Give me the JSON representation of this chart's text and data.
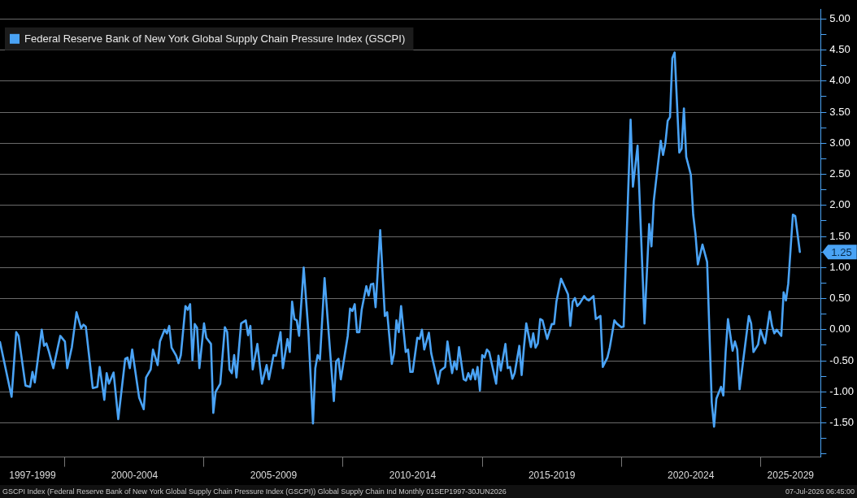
{
  "chart_data": {
    "type": "line",
    "x": [
      "1997-09",
      "1998-02",
      "1998-04",
      "1998-05",
      "1998-08",
      "1998-10",
      "1998-11",
      "1998-12",
      "1999-03",
      "1999-04",
      "1999-05",
      "1999-06",
      "1999-08",
      "1999-11",
      "2000-01",
      "2000-02",
      "2000-04",
      "2000-06",
      "2000-08",
      "2000-09",
      "2000-10",
      "2001-01",
      "2001-03",
      "2001-04",
      "2001-06",
      "2001-07",
      "2001-08",
      "2001-10",
      "2001-12",
      "2002-03",
      "2002-04",
      "2002-05",
      "2002-06",
      "2002-09",
      "2002-11",
      "2002-12",
      "2003-02",
      "2003-03",
      "2003-05",
      "2003-06",
      "2003-08",
      "2003-09",
      "2003-10",
      "2003-11",
      "2004-01",
      "2004-02",
      "2004-03",
      "2004-05",
      "2004-06",
      "2004-07",
      "2004-08",
      "2004-09",
      "2004-10",
      "2004-11",
      "2005-01",
      "2005-02",
      "2005-04",
      "2005-05",
      "2005-06",
      "2005-08",
      "2005-10",
      "2005-11",
      "2005-12",
      "2006-01",
      "2006-02",
      "2006-03",
      "2006-05",
      "2006-07",
      "2006-08",
      "2006-09",
      "2006-10",
      "2006-12",
      "2007-02",
      "2007-04",
      "2007-05",
      "2007-07",
      "2007-08",
      "2007-10",
      "2007-11",
      "2008-01",
      "2008-02",
      "2008-03",
      "2008-04",
      "2008-05",
      "2008-06",
      "2008-08",
      "2008-10",
      "2008-12",
      "2009-01",
      "2009-02",
      "2009-03",
      "2009-05",
      "2009-09",
      "2009-10",
      "2009-11",
      "2009-12",
      "2010-03",
      "2010-04",
      "2010-05",
      "2010-06",
      "2010-07",
      "2010-08",
      "2010-09",
      "2010-11",
      "2010-12",
      "2011-01",
      "2011-02",
      "2011-03",
      "2011-05",
      "2011-07",
      "2011-08",
      "2011-10",
      "2011-11",
      "2011-12",
      "2012-01",
      "2012-02",
      "2012-04",
      "2012-05",
      "2012-06",
      "2012-07",
      "2012-09",
      "2012-10",
      "2012-11",
      "2012-12",
      "2013-02",
      "2013-03",
      "2013-06",
      "2013-07",
      "2013-09",
      "2013-10",
      "2013-12",
      "2014-01",
      "2014-02",
      "2014-03",
      "2014-05",
      "2014-06",
      "2014-07",
      "2014-08",
      "2014-09",
      "2014-10",
      "2014-11",
      "2014-12",
      "2015-01",
      "2015-02",
      "2015-03",
      "2015-04",
      "2015-07",
      "2015-08",
      "2015-09",
      "2015-11",
      "2015-12",
      "2016-01",
      "2016-02",
      "2016-03",
      "2016-05",
      "2016-06",
      "2016-07",
      "2016-08",
      "2016-10",
      "2016-11",
      "2016-12",
      "2017-01",
      "2017-02",
      "2017-03",
      "2017-05",
      "2017-07",
      "2017-08",
      "2017-09",
      "2017-11",
      "2018-02",
      "2018-03",
      "2018-04",
      "2018-05",
      "2018-06",
      "2018-07",
      "2018-09",
      "2018-10",
      "2018-11",
      "2019-01",
      "2019-02",
      "2019-04",
      "2019-05",
      "2019-07",
      "2019-08",
      "2019-10",
      "2019-11",
      "2020-01",
      "2020-02",
      "2020-05",
      "2020-06",
      "2020-08",
      "2020-11",
      "2021-01",
      "2021-02",
      "2021-03",
      "2021-04",
      "2021-06",
      "2021-07",
      "2021-08",
      "2021-09",
      "2021-10",
      "2021-11",
      "2021-12",
      "2022-02",
      "2022-03",
      "2022-04",
      "2022-05",
      "2022-07",
      "2022-08",
      "2022-09",
      "2022-10",
      "2022-12",
      "2023-02",
      "2023-04",
      "2023-05",
      "2023-06",
      "2023-08",
      "2023-09",
      "2023-10",
      "2023-11",
      "2024-01",
      "2024-02",
      "2024-03",
      "2024-04",
      "2024-08",
      "2024-09",
      "2024-10",
      "2024-12",
      "2025-01",
      "2025-03",
      "2025-05",
      "2025-06",
      "2025-07",
      "2025-08",
      "2025-10",
      "2025-11",
      "2025-12",
      "2026-01",
      "2026-03",
      "2026-04",
      "2026-06"
    ],
    "series": [
      {
        "name": "Federal Reserve Bank of New York Global Supply Chain Pressure Index (GSCPI)",
        "color": "#4aa3f5",
        "values": [
          -0.2,
          -1.08,
          -0.04,
          -0.1,
          -0.9,
          -0.92,
          -0.68,
          -0.85,
          0.0,
          -0.26,
          -0.22,
          -0.34,
          -0.62,
          -0.1,
          -0.19,
          -0.62,
          -0.28,
          0.28,
          0.02,
          0.08,
          0.05,
          -0.94,
          -0.92,
          -0.6,
          -1.13,
          -0.7,
          -0.87,
          -0.69,
          -1.44,
          -0.47,
          -0.45,
          -0.62,
          -0.32,
          -1.09,
          -1.28,
          -0.77,
          -0.64,
          -0.32,
          -0.57,
          -0.19,
          0.0,
          -0.06,
          0.06,
          -0.29,
          -0.42,
          -0.54,
          -0.41,
          0.38,
          0.32,
          0.41,
          -0.49,
          0.09,
          0.03,
          -0.62,
          0.1,
          -0.13,
          -0.23,
          -1.34,
          -1.0,
          -0.87,
          0.04,
          -0.04,
          -0.64,
          -0.7,
          -0.41,
          -0.77,
          0.1,
          0.15,
          -0.09,
          0.06,
          -0.64,
          -0.23,
          -0.87,
          -0.57,
          -0.8,
          -0.41,
          -0.42,
          -0.04,
          -0.62,
          -0.15,
          -0.36,
          0.45,
          0.17,
          0.15,
          -0.1,
          1.0,
          -0.02,
          -1.51,
          -0.62,
          -0.41,
          -0.48,
          0.83,
          -1.15,
          -0.51,
          -0.47,
          -0.8,
          -0.1,
          0.34,
          0.3,
          0.41,
          -0.04,
          -0.04,
          0.32,
          0.7,
          0.55,
          0.73,
          0.74,
          0.36,
          1.6,
          0.22,
          0.28,
          -0.55,
          -0.38,
          0.15,
          -0.04,
          0.38,
          -0.36,
          -0.32,
          -0.68,
          -0.68,
          -0.13,
          -0.15,
          0.0,
          -0.32,
          -0.05,
          -0.38,
          -0.87,
          -0.66,
          -0.6,
          -0.19,
          -0.7,
          -0.51,
          -0.64,
          -0.28,
          -0.8,
          -0.82,
          -0.7,
          -0.8,
          -0.64,
          -0.8,
          -0.6,
          -0.98,
          -0.41,
          -0.45,
          -0.32,
          -0.36,
          -0.87,
          -0.42,
          -0.66,
          -0.23,
          -0.62,
          -0.6,
          -0.79,
          -0.7,
          -0.26,
          -0.73,
          -0.28,
          0.1,
          -0.28,
          -0.06,
          -0.29,
          -0.22,
          0.17,
          0.15,
          -0.15,
          0.09,
          0.09,
          0.45,
          0.82,
          0.57,
          0.06,
          0.45,
          0.51,
          0.38,
          0.42,
          0.54,
          0.49,
          0.47,
          0.54,
          0.17,
          0.22,
          -0.6,
          -0.45,
          -0.29,
          0.15,
          0.1,
          0.04,
          0.05,
          3.38,
          2.3,
          2.96,
          0.1,
          1.7,
          1.34,
          2.07,
          2.4,
          3.04,
          2.81,
          3.0,
          3.36,
          3.42,
          4.37,
          4.46,
          2.85,
          2.91,
          3.56,
          2.78,
          2.49,
          1.85,
          1.53,
          1.05,
          1.37,
          1.09,
          -1.17,
          -1.56,
          -1.11,
          -0.92,
          -1.06,
          -0.36,
          0.17,
          -0.34,
          -0.19,
          -0.32,
          -0.96,
          0.22,
          0.1,
          -0.36,
          -0.24,
          0.0,
          -0.22,
          0.29,
          0.06,
          -0.06,
          0.0,
          -0.1,
          0.6,
          0.47,
          0.74,
          1.85,
          1.83,
          1.25
        ]
      }
    ],
    "xlim": [
      "1997-09",
      "2027-03"
    ],
    "xticks": [
      {
        "value": "1998-11",
        "label": "1997-1999"
      },
      {
        "value": "2000-01",
        "label": null
      },
      {
        "value": "2002-07",
        "label": "2000-2004"
      },
      {
        "value": "2005-01",
        "label": null
      },
      {
        "value": "2007-07",
        "label": "2005-2009"
      },
      {
        "value": "2010-01",
        "label": null
      },
      {
        "value": "2012-07",
        "label": "2010-2014"
      },
      {
        "value": "2015-01",
        "label": null
      },
      {
        "value": "2017-07",
        "label": "2015-2019"
      },
      {
        "value": "2020-01",
        "label": null
      },
      {
        "value": "2022-07",
        "label": "2020-2024"
      },
      {
        "value": "2025-01",
        "label": null
      },
      {
        "value": "2026-02",
        "label": "2025-2029"
      }
    ],
    "ylim": [
      -2.05,
      5.15
    ],
    "yticks": [
      {
        "value": -2,
        "label": null
      },
      {
        "value": -1.75,
        "label": null
      },
      {
        "value": -1.5,
        "label": "-1.50"
      },
      {
        "value": -1.25,
        "label": null
      },
      {
        "value": -1,
        "label": "-1.00"
      },
      {
        "value": -0.75,
        "label": null
      },
      {
        "value": -0.5,
        "label": "-0.50"
      },
      {
        "value": -0.25,
        "label": null
      },
      {
        "value": 0,
        "label": "0.00"
      },
      {
        "value": 0.25,
        "label": null
      },
      {
        "value": 0.5,
        "label": "0.50"
      },
      {
        "value": 0.75,
        "label": null
      },
      {
        "value": 1,
        "label": "1.00"
      },
      {
        "value": 1.25,
        "label": null
      },
      {
        "value": 1.5,
        "label": "1.50"
      },
      {
        "value": 1.75,
        "label": null
      },
      {
        "value": 2,
        "label": "2.00"
      },
      {
        "value": 2.25,
        "label": null
      },
      {
        "value": 2.5,
        "label": "2.50"
      },
      {
        "value": 2.75,
        "label": null
      },
      {
        "value": 3,
        "label": "3.00"
      },
      {
        "value": 3.25,
        "label": null
      },
      {
        "value": 3.5,
        "label": "3.50"
      },
      {
        "value": 3.75,
        "label": null
      },
      {
        "value": 4,
        "label": "4.00"
      },
      {
        "value": 4.25,
        "label": null
      },
      {
        "value": 4.5,
        "label": "4.50"
      },
      {
        "value": 4.75,
        "label": null
      },
      {
        "value": 5,
        "label": "5.00"
      }
    ],
    "grid": "y",
    "legend": "top left",
    "marker": "none",
    "line_style": "solid",
    "annotations": [
      {
        "text": "1.25",
        "x": "2026-06",
        "y": 1.25
      },
      "GSCPI Index (Federal Reserve Bank of New York Global Supply Chain Pressure Index (GSCPI)) Global Supply Chain Ind Monthly 01SEP1997-30JUN2026",
      "07-Jul-2026 06:45:00"
    ]
  }
}
